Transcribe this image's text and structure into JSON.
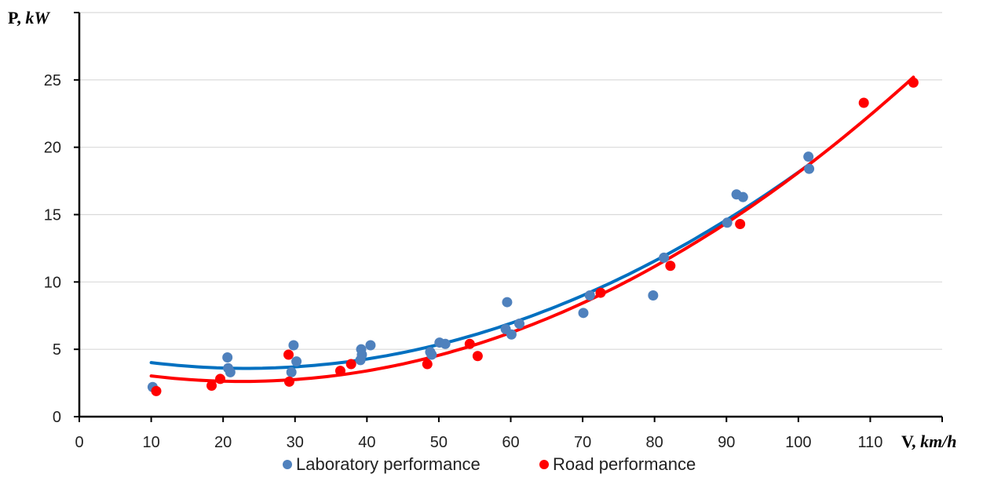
{
  "chart_data": {
    "type": "scatter",
    "ylabel": {
      "symbol": "P, ",
      "unit": "kW"
    },
    "xlabel": {
      "symbol": "V, ",
      "unit": "km/h"
    },
    "xlim": [
      0,
      120
    ],
    "ylim": [
      0,
      30
    ],
    "x_ticks": [
      0,
      10,
      20,
      30,
      40,
      50,
      60,
      70,
      80,
      90,
      100,
      110
    ],
    "y_ticks": [
      0,
      5,
      10,
      15,
      20,
      25
    ],
    "y_grid_lines": [
      5,
      10,
      15,
      20,
      25,
      30
    ],
    "grid": "horizontal",
    "legend_position": "bottom",
    "series": [
      {
        "name": "Laboratory performance",
        "color": "#4F81BD",
        "trend_color": "#0070C0",
        "trend_range": [
          10,
          101
        ],
        "points": [
          [
            10.2,
            2.2
          ],
          [
            20.6,
            4.4
          ],
          [
            20.7,
            3.6
          ],
          [
            21.0,
            3.3
          ],
          [
            29.5,
            3.3
          ],
          [
            29.8,
            5.3
          ],
          [
            30.2,
            4.1
          ],
          [
            39.1,
            4.2
          ],
          [
            39.2,
            5.0
          ],
          [
            39.3,
            4.6
          ],
          [
            40.5,
            5.3
          ],
          [
            48.8,
            4.8
          ],
          [
            49.0,
            4.6
          ],
          [
            50.1,
            5.5
          ],
          [
            50.9,
            5.4
          ],
          [
            59.3,
            6.5
          ],
          [
            59.5,
            8.5
          ],
          [
            60.1,
            6.1
          ],
          [
            61.2,
            6.9
          ],
          [
            70.1,
            7.7
          ],
          [
            71.0,
            9.0
          ],
          [
            79.8,
            9.0
          ],
          [
            81.3,
            11.8
          ],
          [
            90.1,
            14.4
          ],
          [
            91.4,
            16.5
          ],
          [
            92.3,
            16.3
          ],
          [
            101.4,
            19.3
          ],
          [
            101.5,
            18.4
          ]
        ]
      },
      {
        "name": "Road performance",
        "color": "#FF0000",
        "trend_color": "#FF0000",
        "trend_range": [
          10,
          116
        ],
        "points": [
          [
            10.7,
            1.9
          ],
          [
            18.4,
            2.3
          ],
          [
            19.6,
            2.8
          ],
          [
            29.1,
            4.6
          ],
          [
            29.2,
            2.6
          ],
          [
            36.3,
            3.4
          ],
          [
            37.8,
            3.9
          ],
          [
            48.4,
            3.9
          ],
          [
            54.3,
            5.4
          ],
          [
            55.4,
            4.5
          ],
          [
            72.5,
            9.2
          ],
          [
            82.2,
            11.2
          ],
          [
            91.9,
            14.3
          ],
          [
            109.1,
            23.3
          ],
          [
            116.0,
            24.8
          ]
        ]
      }
    ]
  }
}
